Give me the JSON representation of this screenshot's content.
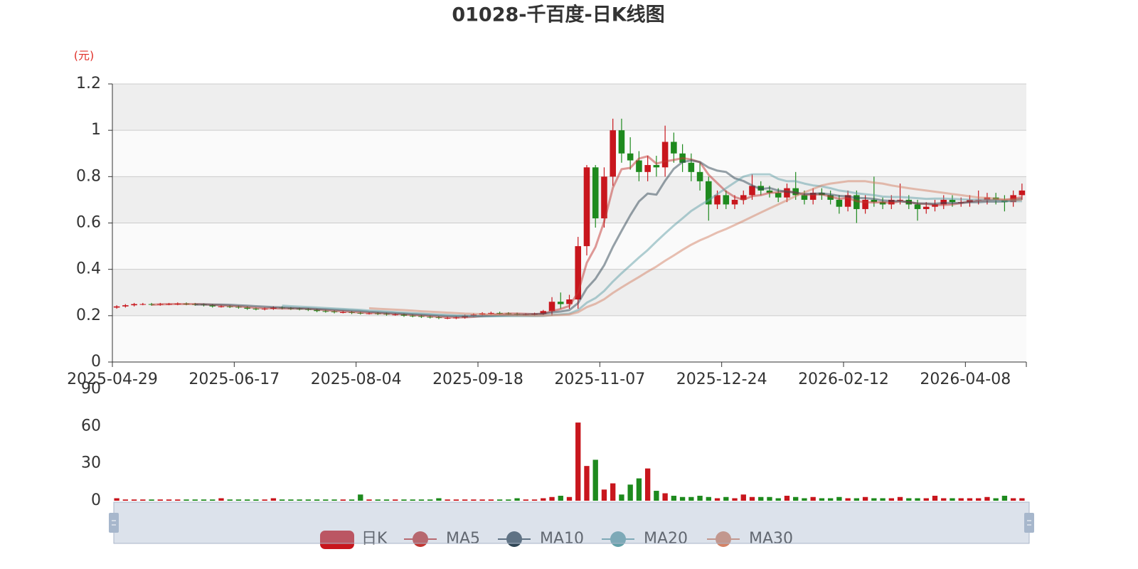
{
  "chart_data": {
    "type": "candlestick",
    "title": "01028-千百度-日K线图",
    "y_axis_label": "(元)",
    "categories": [
      "2025-04-29",
      null,
      null,
      null,
      null,
      null,
      null,
      null,
      null,
      null,
      null,
      null,
      null,
      null,
      "2025-06-17",
      null,
      null,
      null,
      null,
      null,
      null,
      null,
      null,
      null,
      null,
      null,
      null,
      null,
      "2025-08-04",
      null,
      null,
      null,
      null,
      null,
      null,
      null,
      null,
      null,
      null,
      null,
      null,
      null,
      "2025-09-18",
      null,
      null,
      null,
      null,
      null,
      null,
      null,
      null,
      null,
      null,
      null,
      null,
      null,
      "2025-11-07",
      null,
      null,
      null,
      null,
      null,
      null,
      null,
      null,
      null,
      null,
      null,
      null,
      null,
      "2025-12-24",
      null,
      null,
      null,
      null,
      null,
      null,
      null,
      null,
      null,
      null,
      null,
      null,
      null,
      "2026-02-12",
      null,
      null,
      null,
      null,
      null,
      null,
      null,
      null,
      null,
      null,
      null,
      null,
      null,
      "2026-04-08",
      null,
      null,
      null,
      null,
      null,
      null
    ],
    "candle": {
      "name": "日K",
      "up_color": "#c8161d",
      "down_color": "#1e8a1e"
    },
    "open": [
      0.235,
      0.24,
      0.245,
      0.25,
      0.25,
      0.248,
      0.25,
      0.25,
      0.252,
      0.25,
      0.248,
      0.245,
      0.24,
      0.24,
      0.238,
      0.235,
      0.23,
      0.228,
      0.23,
      0.235,
      0.232,
      0.23,
      0.228,
      0.225,
      0.22,
      0.218,
      0.215,
      0.215,
      0.212,
      0.21,
      0.21,
      0.208,
      0.205,
      0.205,
      0.2,
      0.198,
      0.195,
      0.193,
      0.19,
      0.19,
      0.192,
      0.2,
      0.205,
      0.21,
      0.212,
      0.21,
      0.208,
      0.205,
      0.205,
      0.208,
      0.22,
      0.26,
      0.25,
      0.27,
      0.5,
      0.84,
      0.62,
      0.8,
      1.0,
      0.9,
      0.87,
      0.82,
      0.85,
      0.84,
      0.95,
      0.9,
      0.86,
      0.82,
      0.78,
      0.68,
      0.72,
      0.68,
      0.7,
      0.72,
      0.76,
      0.74,
      0.73,
      0.71,
      0.75,
      0.72,
      0.7,
      0.73,
      0.72,
      0.7,
      0.67,
      0.72,
      0.66,
      0.7,
      0.69,
      0.68,
      0.7,
      0.7,
      0.68,
      0.66,
      0.67,
      0.68,
      0.7,
      0.69,
      0.69,
      0.7,
      0.7,
      0.71,
      0.7,
      0.69,
      0.72
    ],
    "close": [
      0.24,
      0.245,
      0.25,
      0.25,
      0.248,
      0.25,
      0.25,
      0.252,
      0.25,
      0.248,
      0.245,
      0.24,
      0.24,
      0.238,
      0.235,
      0.23,
      0.228,
      0.23,
      0.235,
      0.232,
      0.23,
      0.228,
      0.225,
      0.22,
      0.218,
      0.215,
      0.215,
      0.212,
      0.21,
      0.21,
      0.208,
      0.205,
      0.205,
      0.2,
      0.198,
      0.195,
      0.193,
      0.19,
      0.19,
      0.192,
      0.2,
      0.205,
      0.21,
      0.212,
      0.21,
      0.208,
      0.205,
      0.205,
      0.208,
      0.22,
      0.26,
      0.25,
      0.27,
      0.5,
      0.84,
      0.62,
      0.8,
      1.0,
      0.9,
      0.87,
      0.82,
      0.85,
      0.84,
      0.95,
      0.9,
      0.86,
      0.82,
      0.78,
      0.68,
      0.72,
      0.68,
      0.7,
      0.72,
      0.76,
      0.74,
      0.73,
      0.71,
      0.75,
      0.72,
      0.7,
      0.73,
      0.72,
      0.7,
      0.67,
      0.72,
      0.66,
      0.7,
      0.69,
      0.68,
      0.7,
      0.7,
      0.68,
      0.66,
      0.67,
      0.68,
      0.7,
      0.69,
      0.69,
      0.7,
      0.7,
      0.71,
      0.7,
      0.69,
      0.72,
      0.74
    ],
    "low": [
      0.23,
      0.235,
      0.24,
      0.245,
      0.243,
      0.243,
      0.245,
      0.245,
      0.245,
      0.243,
      0.24,
      0.235,
      0.235,
      0.233,
      0.23,
      0.225,
      0.223,
      0.223,
      0.225,
      0.227,
      0.225,
      0.223,
      0.22,
      0.215,
      0.213,
      0.21,
      0.21,
      0.207,
      0.205,
      0.205,
      0.203,
      0.2,
      0.2,
      0.195,
      0.193,
      0.19,
      0.188,
      0.185,
      0.185,
      0.185,
      0.187,
      0.195,
      0.2,
      0.205,
      0.205,
      0.203,
      0.2,
      0.2,
      0.2,
      0.203,
      0.2,
      0.23,
      0.23,
      0.23,
      0.46,
      0.58,
      0.58,
      0.76,
      0.86,
      0.83,
      0.78,
      0.78,
      0.8,
      0.8,
      0.86,
      0.82,
      0.78,
      0.74,
      0.61,
      0.66,
      0.66,
      0.66,
      0.68,
      0.7,
      0.72,
      0.71,
      0.69,
      0.69,
      0.7,
      0.68,
      0.68,
      0.7,
      0.68,
      0.64,
      0.65,
      0.6,
      0.64,
      0.67,
      0.66,
      0.66,
      0.68,
      0.66,
      0.61,
      0.64,
      0.65,
      0.66,
      0.67,
      0.67,
      0.67,
      0.68,
      0.68,
      0.68,
      0.65,
      0.67,
      0.7
    ],
    "high": [
      0.245,
      0.25,
      0.255,
      0.255,
      0.255,
      0.255,
      0.255,
      0.257,
      0.257,
      0.255,
      0.253,
      0.25,
      0.245,
      0.245,
      0.243,
      0.24,
      0.235,
      0.235,
      0.24,
      0.24,
      0.237,
      0.235,
      0.233,
      0.23,
      0.225,
      0.223,
      0.22,
      0.22,
      0.217,
      0.215,
      0.215,
      0.213,
      0.21,
      0.21,
      0.205,
      0.203,
      0.2,
      0.198,
      0.195,
      0.197,
      0.205,
      0.21,
      0.215,
      0.217,
      0.217,
      0.215,
      0.213,
      0.21,
      0.213,
      0.225,
      0.28,
      0.3,
      0.29,
      0.54,
      0.85,
      0.85,
      0.84,
      1.05,
      1.05,
      0.97,
      0.91,
      0.89,
      0.89,
      1.02,
      0.99,
      0.94,
      0.9,
      0.86,
      0.8,
      0.74,
      0.74,
      0.72,
      0.74,
      0.81,
      0.78,
      0.76,
      0.75,
      0.77,
      0.82,
      0.74,
      0.75,
      0.75,
      0.74,
      0.72,
      0.74,
      0.74,
      0.72,
      0.8,
      0.71,
      0.72,
      0.77,
      0.72,
      0.7,
      0.69,
      0.7,
      0.72,
      0.72,
      0.71,
      0.72,
      0.74,
      0.73,
      0.73,
      0.72,
      0.74,
      0.77
    ],
    "series": [
      {
        "name": "MA5",
        "color": "#c23531",
        "values": [
          null,
          null,
          null,
          null,
          0.247,
          0.249,
          0.25,
          0.25,
          0.25,
          0.25,
          0.249,
          0.247,
          0.245,
          0.242,
          0.24,
          0.237,
          0.234,
          0.232,
          0.232,
          0.231,
          0.231,
          0.231,
          0.23,
          0.227,
          0.224,
          0.221,
          0.219,
          0.216,
          0.214,
          0.212,
          0.211,
          0.209,
          0.208,
          0.206,
          0.203,
          0.201,
          0.198,
          0.195,
          0.193,
          0.192,
          0.193,
          0.195,
          0.199,
          0.204,
          0.207,
          0.209,
          0.209,
          0.208,
          0.207,
          0.209,
          0.22,
          0.229,
          0.242,
          0.3,
          0.428,
          0.496,
          0.606,
          0.752,
          0.832,
          0.838,
          0.878,
          0.888,
          0.856,
          0.866,
          0.872,
          0.88,
          0.874,
          0.862,
          0.808,
          0.772,
          0.736,
          0.712,
          0.7,
          0.716,
          0.72,
          0.73,
          0.732,
          0.738,
          0.73,
          0.722,
          0.722,
          0.724,
          0.714,
          0.704,
          0.708,
          0.694,
          0.69,
          0.688,
          0.69,
          0.686,
          0.694,
          0.69,
          0.684,
          0.682,
          0.678,
          0.678,
          0.68,
          0.686,
          0.692,
          0.696,
          0.698,
          0.7,
          0.7,
          0.704,
          0.712
        ]
      },
      {
        "name": "MA10",
        "color": "#2f4554",
        "values": [
          null,
          null,
          null,
          null,
          null,
          null,
          null,
          null,
          null,
          0.248,
          0.249,
          0.248,
          0.248,
          0.247,
          0.245,
          0.243,
          0.241,
          0.239,
          0.237,
          0.236,
          0.234,
          0.232,
          0.231,
          0.229,
          0.228,
          0.226,
          0.224,
          0.222,
          0.22,
          0.217,
          0.215,
          0.213,
          0.211,
          0.209,
          0.207,
          0.205,
          0.203,
          0.2,
          0.199,
          0.198,
          0.197,
          0.197,
          0.197,
          0.198,
          0.2,
          0.202,
          0.203,
          0.205,
          0.206,
          0.208,
          0.214,
          0.218,
          0.224,
          0.254,
          0.318,
          0.359,
          0.418,
          0.497,
          0.566,
          0.633,
          0.693,
          0.727,
          0.722,
          0.782,
          0.834,
          0.863,
          0.87,
          0.863,
          0.839,
          0.826,
          0.82,
          0.793,
          0.781,
          0.762,
          0.746,
          0.751,
          0.74,
          0.735,
          0.731,
          0.725,
          0.726,
          0.728,
          0.723,
          0.717,
          0.715,
          0.708,
          0.707,
          0.704,
          0.697,
          0.695,
          0.694,
          0.69,
          0.684,
          0.684,
          0.683,
          0.687,
          0.686,
          0.687,
          0.69,
          0.69,
          0.692,
          0.692,
          0.693,
          0.698,
          0.704
        ]
      },
      {
        "name": "MA20",
        "color": "#61a0a8",
        "values": [
          null,
          null,
          null,
          null,
          null,
          null,
          null,
          null,
          null,
          null,
          null,
          null,
          null,
          null,
          null,
          null,
          null,
          null,
          null,
          0.243,
          0.241,
          0.239,
          0.237,
          0.235,
          0.233,
          0.231,
          0.229,
          0.227,
          0.225,
          0.222,
          0.22,
          0.218,
          0.215,
          0.213,
          0.211,
          0.209,
          0.207,
          0.205,
          0.203,
          0.201,
          0.2,
          0.199,
          0.199,
          0.198,
          0.198,
          0.198,
          0.198,
          0.198,
          0.198,
          0.199,
          0.203,
          0.206,
          0.209,
          0.224,
          0.256,
          0.276,
          0.307,
          0.347,
          0.383,
          0.417,
          0.451,
          0.483,
          0.52,
          0.555,
          0.589,
          0.62,
          0.652,
          0.676,
          0.698,
          0.725,
          0.75,
          0.775,
          0.8,
          0.81,
          0.81,
          0.81,
          0.79,
          0.78,
          0.78,
          0.77,
          0.762,
          0.758,
          0.75,
          0.74,
          0.735,
          0.728,
          0.724,
          0.72,
          0.714,
          0.712,
          0.712,
          0.71,
          0.707,
          0.704,
          0.705,
          0.705,
          0.704,
          0.702,
          0.7,
          0.7,
          0.7,
          0.698,
          0.695,
          0.694,
          0.694
        ]
      },
      {
        "name": "MA30",
        "color": "#d48265",
        "values": [
          null,
          null,
          null,
          null,
          null,
          null,
          null,
          null,
          null,
          null,
          null,
          null,
          null,
          null,
          null,
          null,
          null,
          null,
          null,
          null,
          null,
          null,
          null,
          null,
          null,
          null,
          null,
          null,
          null,
          0.232,
          0.23,
          0.228,
          0.226,
          0.224,
          0.222,
          0.219,
          0.217,
          0.215,
          0.213,
          0.211,
          0.209,
          0.208,
          0.207,
          0.205,
          0.204,
          0.203,
          0.202,
          0.201,
          0.2,
          0.2,
          0.202,
          0.203,
          0.205,
          0.215,
          0.237,
          0.251,
          0.271,
          0.298,
          0.322,
          0.345,
          0.367,
          0.39,
          0.412,
          0.437,
          0.46,
          0.484,
          0.506,
          0.525,
          0.541,
          0.559,
          0.574,
          0.591,
          0.609,
          0.627,
          0.645,
          0.663,
          0.68,
          0.698,
          0.716,
          0.732,
          0.747,
          0.762,
          0.77,
          0.775,
          0.78,
          0.78,
          0.78,
          0.774,
          0.77,
          0.762,
          0.756,
          0.75,
          0.745,
          0.74,
          0.735,
          0.73,
          0.725,
          0.72,
          0.715,
          0.71,
          0.708,
          0.705,
          0.7,
          0.7,
          0.7
        ]
      }
    ],
    "ylim": [
      0,
      1.2
    ],
    "yticks": [
      0,
      0.2,
      0.4,
      0.6,
      0.8,
      1,
      1.2
    ],
    "grid": true,
    "volume": {
      "values": [
        2,
        1,
        1,
        1,
        1,
        1,
        1,
        1,
        1,
        1,
        1,
        1,
        2,
        1,
        1,
        1,
        1,
        1,
        2,
        1,
        1,
        1,
        1,
        1,
        1,
        1,
        1,
        1,
        5,
        1,
        1,
        1,
        1,
        1,
        1,
        1,
        1,
        2,
        1,
        1,
        1,
        1,
        1,
        1,
        1,
        1,
        2,
        1,
        1,
        2,
        3,
        4,
        3,
        63,
        28,
        33,
        9,
        14,
        5,
        13,
        18,
        26,
        8,
        6,
        4,
        3,
        3,
        4,
        3,
        2,
        3,
        2,
        5,
        3,
        3,
        3,
        2,
        4,
        3,
        2,
        3,
        2,
        2,
        3,
        2,
        2,
        3,
        2,
        2,
        2,
        3,
        2,
        2,
        2,
        4,
        2,
        2,
        2,
        2,
        2,
        3,
        2,
        4,
        2,
        2
      ],
      "ylim": [
        0,
        90
      ],
      "yticks": [
        0,
        30,
        60,
        90
      ]
    }
  }
}
